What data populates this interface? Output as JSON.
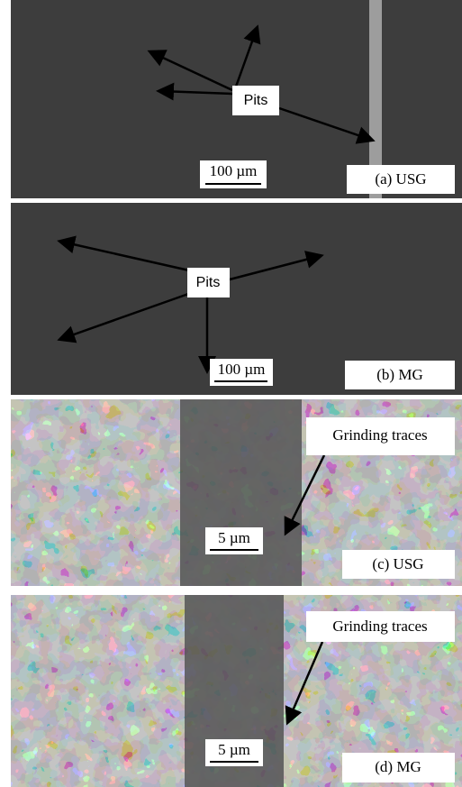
{
  "panels": [
    {
      "label": "(a) USG",
      "annotation": "Pits",
      "scale": "100 µm"
    },
    {
      "label": "(b) MG",
      "annotation": "Pits",
      "scale": "100 µm"
    },
    {
      "label": "(c) USG",
      "annotation": "Grinding traces",
      "scale": "5 µm"
    },
    {
      "label": "(d) MG",
      "annotation": "Grinding traces",
      "scale": "5 µm"
    }
  ]
}
